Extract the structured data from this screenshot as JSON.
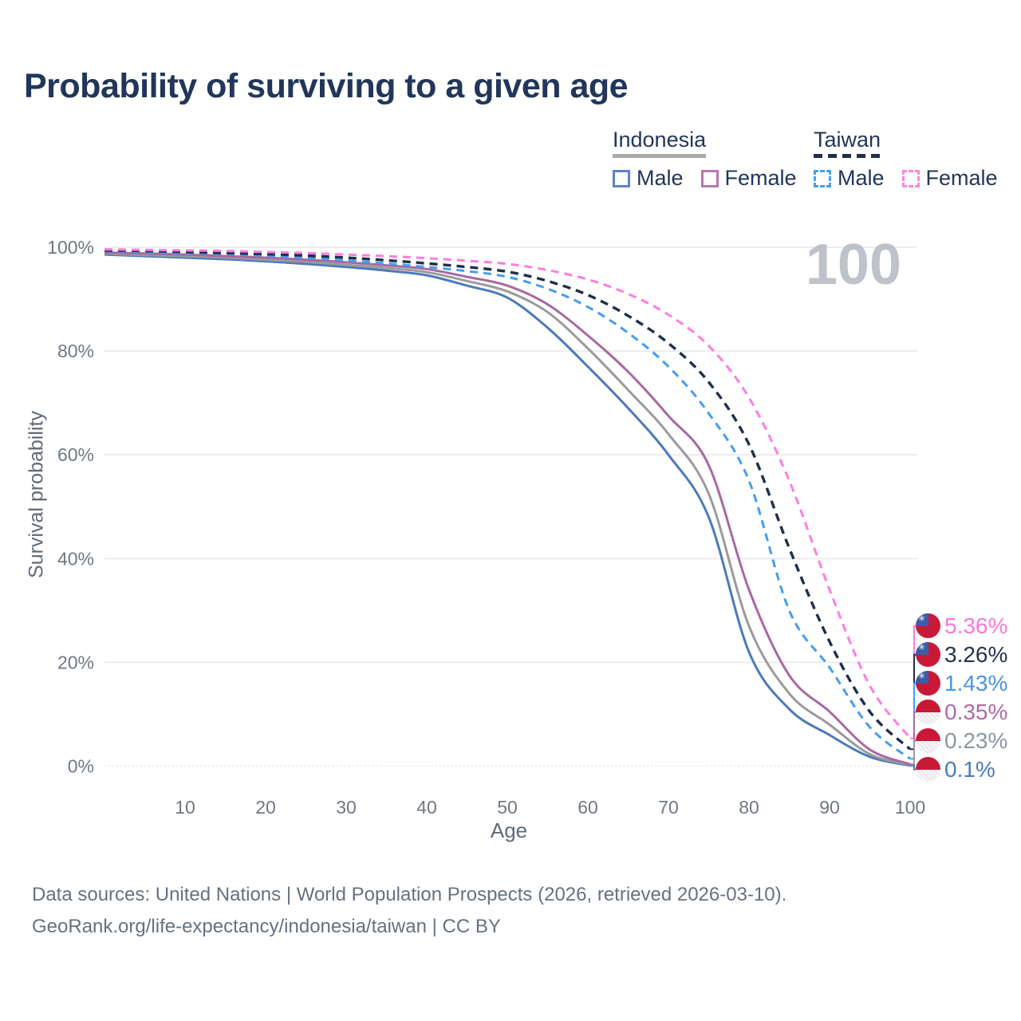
{
  "title": "Probability of surviving to a given age",
  "watermark": "100",
  "legend": {
    "groups": [
      {
        "label": "Indonesia",
        "underline_style": "solid",
        "items": [
          {
            "label": "Male",
            "color": "#5b84c4",
            "dashed": false
          },
          {
            "label": "Female",
            "color": "#b679ae",
            "dashed": false
          }
        ]
      },
      {
        "label": "Taiwan",
        "underline_style": "dashed",
        "items": [
          {
            "label": "Male",
            "color": "#4a9df3",
            "dashed": true
          },
          {
            "label": "Female",
            "color": "#fb86e3",
            "dashed": true
          }
        ]
      }
    ]
  },
  "axes": {
    "y_label": "Survival probability",
    "x_label": "Age",
    "y_ticks": [
      {
        "value": 0,
        "label": "0%"
      },
      {
        "value": 20,
        "label": "20%"
      },
      {
        "value": 40,
        "label": "40%"
      },
      {
        "value": 60,
        "label": "60%"
      },
      {
        "value": 80,
        "label": "80%"
      },
      {
        "value": 100,
        "label": "100%"
      }
    ],
    "x_ticks": [
      10,
      20,
      30,
      40,
      50,
      60,
      70,
      80,
      90,
      100
    ]
  },
  "chart_data": {
    "type": "line",
    "title": "Probability of surviving to a given age",
    "xlabel": "Age",
    "ylabel": "Survival probability",
    "xlim": [
      0,
      100
    ],
    "ylim": [
      0,
      100
    ],
    "grid": "horizontal",
    "x": [
      0,
      5,
      10,
      15,
      20,
      25,
      30,
      35,
      40,
      45,
      50,
      55,
      60,
      65,
      70,
      75,
      80,
      85,
      90,
      95,
      100
    ],
    "series": [
      {
        "name": "Indonesia Male",
        "country": "Indonesia",
        "sex": "Male",
        "color": "#4c79bc",
        "dash": false,
        "width": 3,
        "values": [
          98.6,
          98.3,
          98.0,
          97.7,
          97.3,
          96.8,
          96.2,
          95.5,
          94.6,
          92.6,
          90.3,
          84.5,
          77.0,
          69.0,
          60.0,
          48.0,
          22.0,
          11.0,
          6.0,
          1.8,
          0.1
        ]
      },
      {
        "name": "Indonesia Both sexes",
        "country": "Indonesia",
        "sex": "Both",
        "color": "#9b9b9b",
        "dash": false,
        "width": 3,
        "values": [
          98.8,
          98.5,
          98.3,
          98.0,
          97.6,
          97.2,
          96.6,
          96.0,
          95.2,
          93.5,
          91.5,
          87.5,
          80.5,
          72.5,
          64.0,
          52.5,
          27.0,
          14.0,
          8.0,
          2.3,
          0.23
        ]
      },
      {
        "name": "Indonesia Female",
        "country": "Indonesia",
        "sex": "Female",
        "color": "#a868a3",
        "dash": false,
        "width": 3,
        "values": [
          99.0,
          98.8,
          98.6,
          98.3,
          98.0,
          97.6,
          97.1,
          96.5,
          95.8,
          94.3,
          92.6,
          89.0,
          83.0,
          76.0,
          67.5,
          58.0,
          34.0,
          17.5,
          10.5,
          3.2,
          0.35
        ]
      },
      {
        "name": "Taiwan Male",
        "country": "Taiwan",
        "sex": "Male",
        "color": "#459df2",
        "dash": true,
        "width": 3,
        "values": [
          99.3,
          99.1,
          98.9,
          98.7,
          98.4,
          98.0,
          97.5,
          96.9,
          96.2,
          95.4,
          94.3,
          92.0,
          88.5,
          83.5,
          77.0,
          68.0,
          55.0,
          30.0,
          19.0,
          7.5,
          1.43
        ]
      },
      {
        "name": "Taiwan Both sexes",
        "country": "Taiwan",
        "sex": "Both",
        "color": "#1e2f4c",
        "dash": true,
        "width": 3.4,
        "values": [
          99.4,
          99.3,
          99.1,
          98.9,
          98.7,
          98.4,
          98.0,
          97.5,
          96.9,
          96.2,
          95.3,
          93.5,
          90.8,
          86.8,
          81.5,
          74.0,
          62.0,
          42.0,
          24.0,
          10.5,
          3.26
        ]
      },
      {
        "name": "Taiwan Female",
        "country": "Taiwan",
        "sex": "Female",
        "color": "#fb7ee1",
        "dash": true,
        "width": 3,
        "values": [
          99.6,
          99.5,
          99.4,
          99.3,
          99.1,
          98.9,
          98.6,
          98.3,
          97.9,
          97.4,
          96.8,
          95.6,
          93.8,
          91.0,
          87.0,
          81.0,
          71.0,
          55.0,
          34.0,
          15.5,
          5.36
        ]
      }
    ]
  },
  "end_labels": [
    {
      "value": "5.36%",
      "numeric": 5.36,
      "color": "#f878dd",
      "flag": "taiwan",
      "series": "Taiwan Female"
    },
    {
      "value": "3.26%",
      "numeric": 3.26,
      "color": "#26334d",
      "flag": "taiwan",
      "series": "Taiwan Both sexes"
    },
    {
      "value": "1.43%",
      "numeric": 1.43,
      "color": "#4b94ea",
      "flag": "taiwan",
      "series": "Taiwan Male"
    },
    {
      "value": "0.35%",
      "numeric": 0.35,
      "color": "#b468a8",
      "flag": "indonesia",
      "series": "Indonesia Female"
    },
    {
      "value": "0.23%",
      "numeric": 0.23,
      "color": "#8c96a4",
      "flag": "indonesia",
      "series": "Indonesia Both sexes"
    },
    {
      "value": "0.1%",
      "numeric": 0.1,
      "color": "#4b7abd",
      "flag": "indonesia",
      "series": "Indonesia Male"
    }
  ],
  "flag_glyphs": {
    "taiwan_sun": "✳"
  },
  "footer": {
    "line1": "Data sources: United Nations | World Population Prospects (2026, retrieved 2026-03-10).",
    "line2": "GeoRank.org/life-expectancy/indonesia/taiwan | CC BY"
  }
}
